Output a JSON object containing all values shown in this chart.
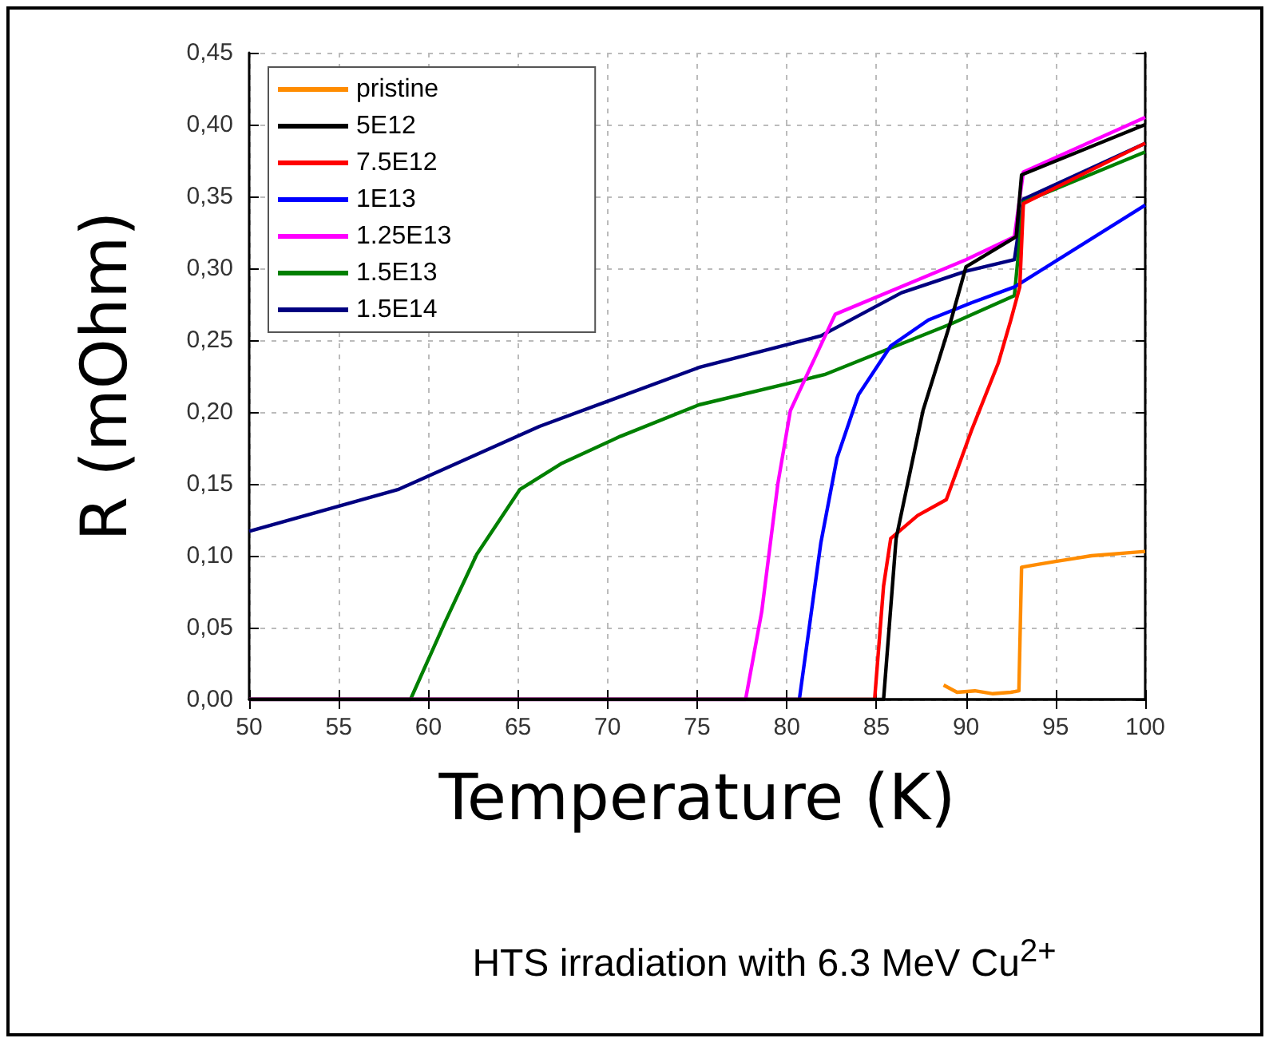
{
  "chart_data": {
    "type": "line",
    "xlabel": "Temperature (K)",
    "ylabel": "R (mOhm)",
    "annotations": [
      "HTS irradiation with 6.3 MeV Cu$^{2+}$"
    ],
    "xlim": [
      50,
      100
    ],
    "xticks": [
      50,
      55,
      60,
      65,
      70,
      75,
      80,
      85,
      90,
      95,
      100
    ],
    "ylim": [
      0,
      0.45
    ],
    "yticks": [
      {
        "value": 0,
        "label": "0,00"
      },
      {
        "value": 0.05,
        "label": "0,05"
      },
      {
        "value": 0.1,
        "label": "0,10"
      },
      {
        "value": 0.15,
        "label": "0,15"
      },
      {
        "value": 0.2,
        "label": "0,20"
      },
      {
        "value": 0.25,
        "label": "0,25"
      },
      {
        "value": 0.3,
        "label": "0,30"
      },
      {
        "value": 0.35,
        "label": "0,35"
      },
      {
        "value": 0.4,
        "label": "0,40"
      },
      {
        "value": 0.45,
        "label": "0,45"
      }
    ],
    "grid": true,
    "legend": "top left",
    "marker": "none",
    "line_style": "solid",
    "series": [
      {
        "name": "pristine",
        "color": "#ff8c00",
        "x": [
          88.75,
          89.5,
          90.5,
          91.5,
          92.5,
          92.95,
          93.1,
          94,
          95,
          96,
          97,
          98,
          99,
          100
        ],
        "values": [
          0.01,
          0.005,
          0.006,
          0.004,
          0.005,
          0.006,
          0.092,
          0.094,
          0.096,
          0.098,
          0.1,
          0.101,
          0.102,
          0.103
        ]
      },
      {
        "name": "5E12",
        "color": "#000000",
        "x": [
          50,
          85.4,
          86.1,
          87.6,
          89.1,
          90,
          92.8,
          93.1,
          100
        ],
        "values": [
          0,
          0,
          0.112,
          0.201,
          0.261,
          0.301,
          0.322,
          0.365,
          0.4
        ]
      },
      {
        "name": "7.5E12",
        "color": "#ff0000",
        "x": [
          50,
          84.9,
          85.4,
          85.8,
          87.3,
          88.9,
          90.3,
          91.8,
          92.5,
          93,
          93.2,
          100
        ],
        "values": [
          0,
          0,
          0.079,
          0.112,
          0.128,
          0.139,
          0.187,
          0.234,
          0.264,
          0.287,
          0.345,
          0.387
        ]
      },
      {
        "name": "1E13",
        "color": "#0000ff",
        "x": [
          50,
          80.7,
          81.9,
          82.8,
          84,
          85.8,
          87.9,
          90.3,
          92.7,
          100
        ],
        "values": [
          0,
          0,
          0.109,
          0.168,
          0.212,
          0.246,
          0.264,
          0.276,
          0.287,
          0.344
        ]
      },
      {
        "name": "1.25E13",
        "color": "#ff00ff",
        "x": [
          50,
          77.7,
          78.6,
          79.5,
          80.2,
          82.7,
          90,
          92.7,
          93.2,
          100
        ],
        "values": [
          0,
          0,
          0.061,
          0.15,
          0.201,
          0.268,
          0.306,
          0.322,
          0.367,
          0.405
        ]
      },
      {
        "name": "1.5E13",
        "color": "#008000",
        "x": [
          50,
          59,
          60.9,
          62.7,
          65.1,
          67.4,
          70.7,
          75.1,
          82.1,
          84.9,
          89.1,
          92.7,
          93.2,
          100
        ],
        "values": [
          0,
          0,
          0.053,
          0.101,
          0.146,
          0.164,
          0.183,
          0.205,
          0.226,
          0.24,
          0.261,
          0.281,
          0.346,
          0.381
        ]
      },
      {
        "name": "1.5E14",
        "color": "#000080",
        "x": [
          50,
          58.3,
          66.2,
          75.1,
          81.9,
          86.4,
          90,
          92.7,
          93.2,
          100
        ],
        "values": [
          0.117,
          0.146,
          0.19,
          0.231,
          0.253,
          0.283,
          0.298,
          0.306,
          0.348,
          0.387
        ]
      }
    ]
  }
}
